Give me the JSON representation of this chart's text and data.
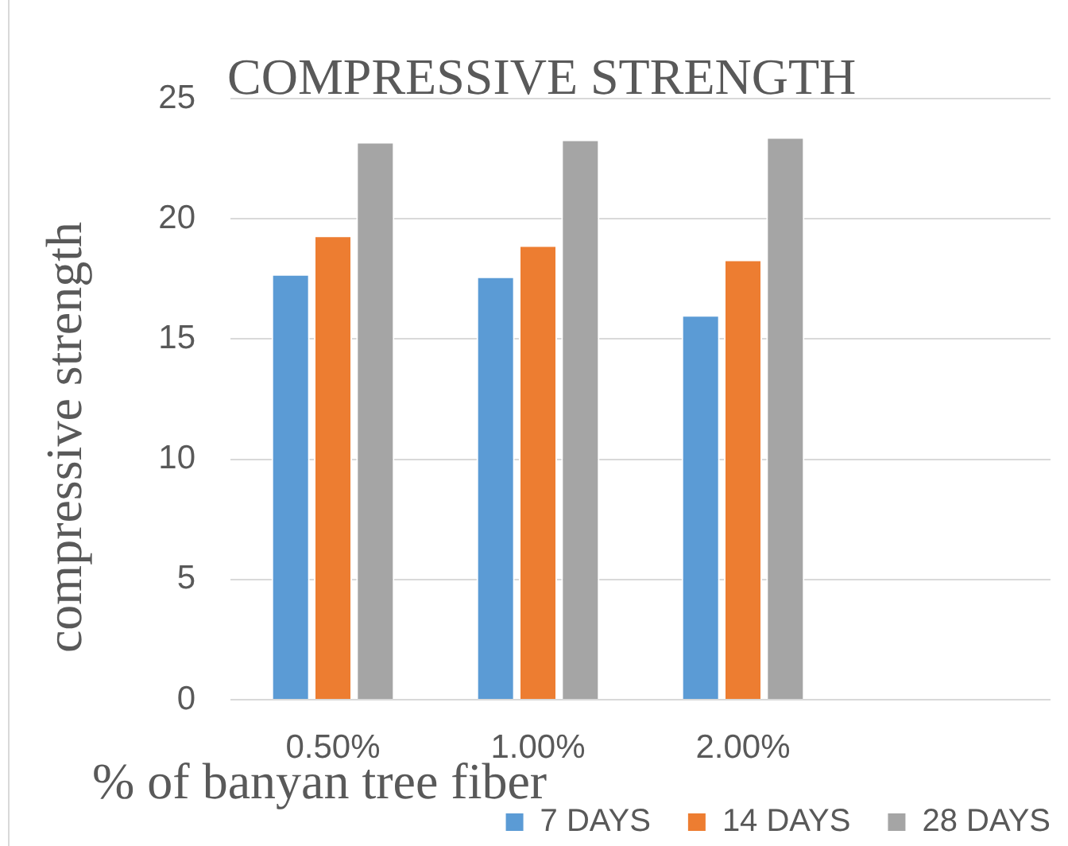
{
  "chart_data": {
    "type": "bar",
    "title": "COMPRESSIVE STRENGTH",
    "xlabel": "% of banyan tree fiber",
    "ylabel": "compressive strength",
    "categories": [
      "0.50%",
      "1.00%",
      "2.00%",
      null
    ],
    "series": [
      {
        "name": "7 DAYS",
        "color": "#5b9bd5",
        "values": [
          17.7,
          17.6,
          16.0,
          null
        ]
      },
      {
        "name": "14 DAYS",
        "color": "#ed7d31",
        "values": [
          19.3,
          18.9,
          18.3,
          null
        ]
      },
      {
        "name": "28 DAYS",
        "color": "#a5a5a5",
        "values": [
          23.2,
          23.3,
          23.4,
          null
        ]
      }
    ],
    "ylim": [
      0,
      25
    ],
    "yticks": [
      0,
      5,
      10,
      15,
      20,
      25
    ],
    "grid": "y",
    "legend": "bottom right"
  }
}
